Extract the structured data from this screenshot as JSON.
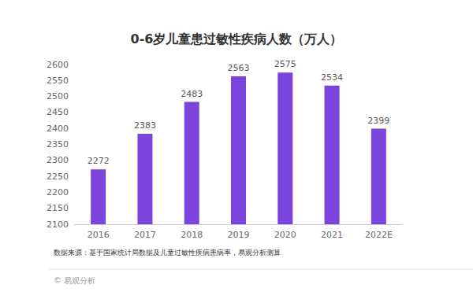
{
  "chart_data": {
    "type": "bar",
    "title": "0-6岁儿童患过敏性疾病人数（万人）",
    "categories": [
      "2016",
      "2017",
      "2018",
      "2019",
      "2020",
      "2021",
      "2022E"
    ],
    "values": [
      2272,
      2383,
      2483,
      2563,
      2575,
      2534,
      2399
    ],
    "color": "#7b44dc",
    "ylim": [
      2100,
      2600
    ],
    "yticks": [
      2100,
      2150,
      2200,
      2250,
      2300,
      2350,
      2400,
      2450,
      2500,
      2550,
      2600
    ],
    "grid": false,
    "data_labels": true,
    "annotations": [
      "数据来源：基于国家统计局数据及儿童过敏性疾病患病率，易观分析测算",
      "© 易观分析"
    ]
  }
}
